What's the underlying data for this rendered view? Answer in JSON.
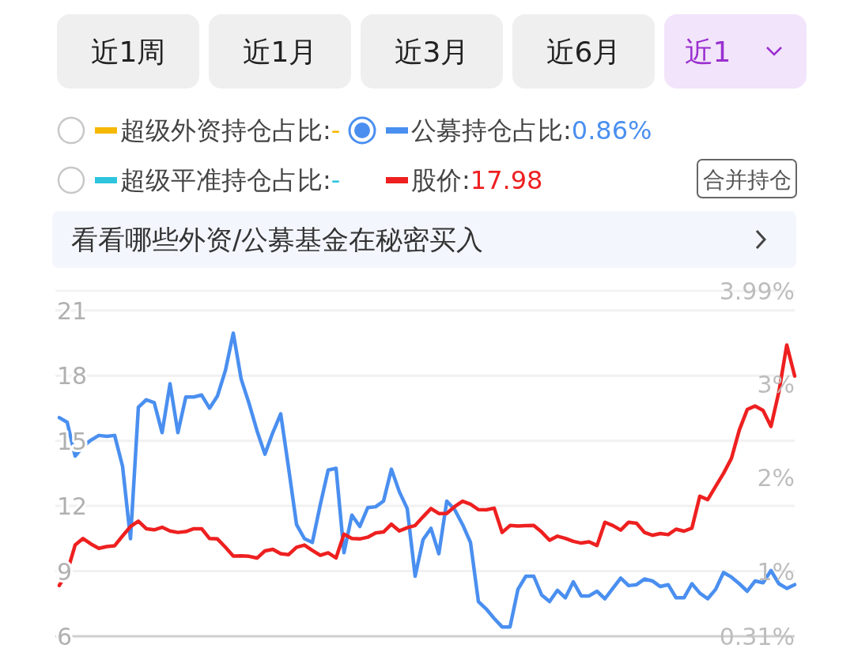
{
  "chart_data": {
    "type": "line",
    "annotations": [
      "近1周",
      "近1月",
      "近3月",
      "近6月",
      "近1",
      "合并持仓",
      "看看哪些外资/公募基金在秘密买入"
    ],
    "categories": [
      null,
      null,
      null,
      null,
      null,
      null,
      null,
      null,
      null,
      null,
      null,
      null,
      null,
      null,
      null,
      null,
      null,
      null,
      null,
      null,
      null,
      null,
      null,
      null,
      null,
      null,
      null,
      null,
      null,
      null,
      null,
      null,
      null,
      null,
      null,
      null,
      null,
      null,
      null,
      null,
      null,
      null,
      null,
      null,
      null,
      null,
      null,
      null,
      null,
      null,
      null,
      null,
      null,
      null,
      null,
      null,
      null,
      null,
      null,
      null,
      null,
      null,
      null,
      null,
      null,
      null,
      null,
      null,
      null,
      null,
      null,
      null,
      null,
      null,
      null,
      null,
      null,
      null,
      null,
      null,
      null,
      null,
      null,
      null,
      null,
      null,
      null,
      null,
      null,
      null,
      null,
      null,
      null,
      null
    ],
    "ylim": [
      6,
      21.9
    ],
    "yticks": [
      6,
      9,
      12,
      15,
      18,
      21
    ],
    "y2lim": [
      0.31,
      3.99
    ],
    "y2ticks": [
      {
        "value": 0.31,
        "label": "0.31%"
      },
      {
        "value": 1,
        "label": "1%"
      },
      {
        "value": 2,
        "label": "2%"
      },
      {
        "value": 3,
        "label": "3%"
      },
      {
        "value": 3.99,
        "label": "3.99%"
      }
    ],
    "tick_labels": "y",
    "grid": "y",
    "legend": "top",
    "series": [
      {
        "name": "超级外资持仓占比:-",
        "color": "#f5b800",
        "axis": "y2",
        "values": [
          null,
          null,
          null,
          null,
          null,
          null,
          null,
          null,
          null,
          null,
          null,
          null,
          null,
          null,
          null,
          null,
          null,
          null,
          null,
          null,
          null,
          null,
          null,
          null,
          null,
          null,
          null,
          null,
          null,
          null,
          null,
          null,
          null,
          null,
          null,
          null,
          null,
          null,
          null,
          null,
          null,
          null,
          null,
          null,
          null,
          null,
          null,
          null,
          null,
          null,
          null,
          null,
          null,
          null,
          null,
          null,
          null,
          null,
          null,
          null,
          null,
          null,
          null,
          null,
          null,
          null,
          null,
          null,
          null,
          null,
          null,
          null,
          null,
          null,
          null,
          null,
          null,
          null,
          null,
          null,
          null,
          null,
          null,
          null,
          null,
          null,
          null,
          null,
          null,
          null,
          null,
          null,
          null,
          null
        ]
      },
      {
        "name": "公募持仓占比:0.86%",
        "color": "#4a8ff0",
        "axis": "y2",
        "values": [
          2.64,
          2.59,
          2.23,
          2.33,
          2.4,
          2.45,
          2.44,
          2.45,
          2.12,
          1.35,
          2.75,
          2.83,
          2.8,
          2.48,
          3.0,
          2.48,
          2.86,
          2.86,
          2.88,
          2.74,
          2.87,
          3.14,
          3.54,
          3.05,
          2.79,
          2.5,
          2.25,
          2.48,
          2.68,
          2.1,
          1.5,
          1.35,
          1.31,
          1.71,
          2.08,
          2.1,
          1.2,
          1.6,
          1.48,
          1.68,
          1.69,
          1.75,
          2.09,
          1.85,
          1.67,
          0.95,
          1.34,
          1.46,
          1.19,
          1.75,
          1.66,
          1.5,
          1.31,
          0.68,
          0.6,
          0.5,
          0.41,
          0.41,
          0.81,
          0.95,
          0.95,
          0.75,
          0.68,
          0.8,
          0.72,
          0.89,
          0.74,
          0.74,
          0.79,
          0.71,
          0.82,
          0.93,
          0.85,
          0.86,
          0.92,
          0.9,
          0.84,
          0.86,
          0.72,
          0.72,
          0.87,
          0.77,
          0.71,
          0.81,
          0.99,
          0.94,
          0.87,
          0.79,
          0.9,
          0.88,
          1.01,
          0.87,
          0.82,
          0.86
        ]
      },
      {
        "name": "超级平准持仓占比:-",
        "color": "#2ec4dd",
        "axis": "y2",
        "values": [
          null,
          null,
          null,
          null,
          null,
          null,
          null,
          null,
          null,
          null,
          null,
          null,
          null,
          null,
          null,
          null,
          null,
          null,
          null,
          null,
          null,
          null,
          null,
          null,
          null,
          null,
          null,
          null,
          null,
          null,
          null,
          null,
          null,
          null,
          null,
          null,
          null,
          null,
          null,
          null,
          null,
          null,
          null,
          null,
          null,
          null,
          null,
          null,
          null,
          null,
          null,
          null,
          null,
          null,
          null,
          null,
          null,
          null,
          null,
          null,
          null,
          null,
          null,
          null,
          null,
          null,
          null,
          null,
          null,
          null,
          null,
          null,
          null,
          null,
          null,
          null,
          null,
          null,
          null,
          null,
          null,
          null,
          null,
          null,
          null,
          null,
          null,
          null,
          null,
          null,
          null,
          null,
          null,
          null
        ]
      },
      {
        "name": "股价:17.98",
        "color": "#ee2020",
        "axis": "y",
        "values": [
          8.34,
          8.96,
          10.2,
          10.5,
          10.25,
          10.05,
          10.13,
          10.17,
          10.62,
          11.05,
          11.3,
          10.95,
          10.9,
          11.02,
          10.85,
          10.78,
          10.82,
          10.95,
          10.95,
          10.5,
          10.48,
          10.1,
          9.69,
          9.7,
          9.68,
          9.6,
          9.93,
          10.0,
          9.8,
          9.76,
          10.1,
          10.2,
          9.95,
          9.73,
          9.84,
          9.61,
          10.7,
          10.5,
          10.48,
          10.56,
          10.76,
          10.8,
          11.16,
          10.85,
          11.0,
          11.1,
          11.5,
          11.88,
          11.65,
          11.66,
          11.97,
          12.22,
          12.08,
          11.83,
          11.82,
          11.9,
          10.78,
          11.1,
          11.08,
          11.09,
          11.1,
          10.8,
          10.42,
          10.61,
          10.51,
          10.37,
          10.29,
          10.35,
          10.18,
          11.25,
          11.1,
          10.89,
          11.25,
          11.2,
          10.78,
          10.65,
          10.73,
          10.68,
          10.93,
          10.84,
          10.98,
          12.45,
          12.29,
          12.9,
          13.5,
          14.19,
          15.5,
          16.44,
          16.6,
          16.4,
          15.66,
          17.25,
          19.41,
          17.98
        ]
      }
    ]
  }
}
